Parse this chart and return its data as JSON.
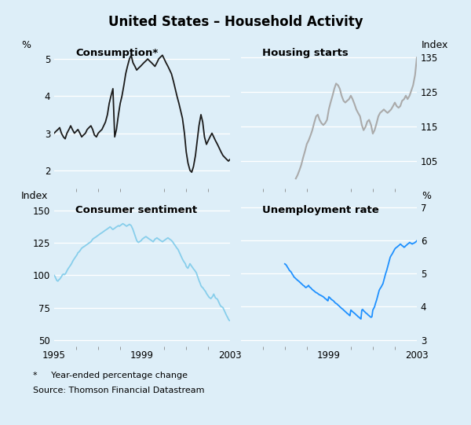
{
  "title": "United States – Household Activity",
  "bg_color": "#ddeef8",
  "footnote": "*     Year-ended percentage change",
  "source": "Source: Thomson Financial Datastream",
  "panel_titles": [
    "Consumption*",
    "Housing starts",
    "Consumer sentiment",
    "Unemployment rate"
  ],
  "left_labels_top": "%",
  "right_labels_top": "Index",
  "left_labels_bot": "Index",
  "right_labels_bot": "%",
  "consumption": {
    "x": [
      1995.0,
      1995.08,
      1995.17,
      1995.25,
      1995.33,
      1995.42,
      1995.5,
      1995.58,
      1995.67,
      1995.75,
      1995.83,
      1995.92,
      1996.0,
      1996.08,
      1996.17,
      1996.25,
      1996.33,
      1996.42,
      1996.5,
      1996.58,
      1996.67,
      1996.75,
      1996.83,
      1996.92,
      1997.0,
      1997.08,
      1997.17,
      1997.25,
      1997.33,
      1997.42,
      1997.5,
      1997.58,
      1997.67,
      1997.75,
      1997.83,
      1997.92,
      1998.0,
      1998.08,
      1998.17,
      1998.25,
      1998.33,
      1998.42,
      1998.5,
      1998.58,
      1998.67,
      1998.75,
      1998.83,
      1998.92,
      1999.0,
      1999.08,
      1999.17,
      1999.25,
      1999.33,
      1999.42,
      1999.5,
      1999.58,
      1999.67,
      1999.75,
      1999.83,
      1999.92,
      2000.0,
      2000.08,
      2000.17,
      2000.25,
      2000.33,
      2000.42,
      2000.5,
      2000.58,
      2000.67,
      2000.75,
      2000.83,
      2000.92,
      2001.0,
      2001.08,
      2001.17,
      2001.25,
      2001.33,
      2001.42,
      2001.5,
      2001.58,
      2001.67,
      2001.75,
      2001.83,
      2001.92,
      2002.0,
      2002.08,
      2002.17,
      2002.25,
      2002.33,
      2002.42,
      2002.5,
      2002.58,
      2002.67,
      2002.75,
      2002.83,
      2002.92,
      2003.0
    ],
    "y": [
      3.0,
      3.05,
      3.1,
      3.15,
      3.0,
      2.9,
      2.85,
      3.0,
      3.1,
      3.2,
      3.1,
      3.0,
      3.05,
      3.1,
      3.0,
      2.9,
      2.95,
      3.0,
      3.1,
      3.15,
      3.2,
      3.1,
      2.95,
      2.9,
      3.0,
      3.05,
      3.1,
      3.2,
      3.3,
      3.5,
      3.8,
      4.0,
      4.2,
      2.9,
      3.1,
      3.5,
      3.8,
      4.0,
      4.3,
      4.6,
      4.8,
      5.0,
      5.1,
      4.9,
      4.8,
      4.7,
      4.75,
      4.8,
      4.85,
      4.9,
      4.95,
      5.0,
      4.95,
      4.9,
      4.85,
      4.8,
      4.9,
      5.0,
      5.05,
      5.1,
      5.0,
      4.9,
      4.8,
      4.7,
      4.6,
      4.4,
      4.2,
      4.0,
      3.8,
      3.6,
      3.4,
      3.0,
      2.5,
      2.2,
      2.0,
      1.95,
      2.1,
      2.4,
      2.8,
      3.2,
      3.5,
      3.3,
      2.9,
      2.7,
      2.8,
      2.9,
      3.0,
      2.9,
      2.8,
      2.7,
      2.6,
      2.5,
      2.4,
      2.35,
      2.3,
      2.25,
      2.3
    ],
    "color": "#1a1a1a",
    "ylim": [
      1.5,
      5.5
    ],
    "yticks": [
      2,
      3,
      4,
      5
    ]
  },
  "housing": {
    "x": [
      1997.5,
      1997.58,
      1997.67,
      1997.75,
      1997.83,
      1997.92,
      1998.0,
      1998.08,
      1998.17,
      1998.25,
      1998.33,
      1998.42,
      1998.5,
      1998.58,
      1998.67,
      1998.75,
      1998.83,
      1998.92,
      1999.0,
      1999.08,
      1999.17,
      1999.25,
      1999.33,
      1999.42,
      1999.5,
      1999.58,
      1999.67,
      1999.75,
      1999.83,
      1999.92,
      2000.0,
      2000.08,
      2000.17,
      2000.25,
      2000.33,
      2000.42,
      2000.5,
      2000.58,
      2000.67,
      2000.75,
      2000.83,
      2000.92,
      2001.0,
      2001.08,
      2001.17,
      2001.25,
      2001.33,
      2001.42,
      2001.5,
      2001.58,
      2001.67,
      2001.75,
      2001.83,
      2001.92,
      2002.0,
      2002.08,
      2002.17,
      2002.25,
      2002.33,
      2002.42,
      2002.5,
      2002.58,
      2002.67,
      2002.75,
      2002.83,
      2002.92,
      2003.0
    ],
    "y": [
      100.0,
      101.0,
      102.5,
      104.0,
      106.0,
      108.0,
      110.0,
      111.0,
      112.5,
      114.0,
      116.0,
      118.0,
      118.5,
      117.0,
      116.0,
      115.5,
      116.0,
      117.0,
      120.0,
      122.0,
      124.0,
      126.0,
      127.5,
      127.0,
      126.0,
      124.0,
      122.5,
      122.0,
      122.5,
      123.0,
      124.0,
      123.0,
      121.5,
      120.0,
      119.0,
      118.0,
      115.5,
      114.0,
      115.0,
      116.5,
      117.0,
      115.5,
      113.0,
      114.0,
      116.0,
      118.0,
      119.0,
      119.5,
      120.0,
      119.5,
      119.0,
      119.5,
      120.0,
      121.0,
      122.0,
      121.0,
      120.5,
      121.0,
      122.5,
      123.0,
      124.0,
      123.0,
      124.0,
      125.5,
      127.0,
      130.0,
      135.0
    ],
    "color": "#aaaaaa",
    "ylim": [
      97,
      140
    ],
    "yticks": [
      105,
      115,
      125,
      135
    ]
  },
  "sentiment": {
    "x": [
      1995.0,
      1995.04,
      1995.08,
      1995.12,
      1995.17,
      1995.21,
      1995.25,
      1995.29,
      1995.33,
      1995.38,
      1995.42,
      1995.46,
      1995.5,
      1995.54,
      1995.58,
      1995.63,
      1995.67,
      1995.71,
      1995.75,
      1995.79,
      1995.83,
      1995.88,
      1995.92,
      1995.96,
      1996.0,
      1996.04,
      1996.08,
      1996.12,
      1996.17,
      1996.21,
      1996.25,
      1996.29,
      1996.33,
      1996.38,
      1996.42,
      1996.46,
      1996.5,
      1996.54,
      1996.58,
      1996.63,
      1996.67,
      1996.71,
      1996.75,
      1996.79,
      1996.83,
      1996.88,
      1996.92,
      1996.96,
      1997.0,
      1997.04,
      1997.08,
      1997.12,
      1997.17,
      1997.21,
      1997.25,
      1997.29,
      1997.33,
      1997.38,
      1997.42,
      1997.46,
      1997.5,
      1997.54,
      1997.58,
      1997.63,
      1997.67,
      1997.71,
      1997.75,
      1997.79,
      1997.83,
      1997.88,
      1997.92,
      1997.96,
      1998.0,
      1998.04,
      1998.08,
      1998.12,
      1998.17,
      1998.21,
      1998.25,
      1998.29,
      1998.33,
      1998.38,
      1998.42,
      1998.46,
      1998.5,
      1998.54,
      1998.58,
      1998.63,
      1998.67,
      1998.71,
      1998.75,
      1998.79,
      1998.83,
      1998.88,
      1998.92,
      1998.96,
      1999.0,
      1999.04,
      1999.08,
      1999.12,
      1999.17,
      1999.21,
      1999.25,
      1999.29,
      1999.33,
      1999.38,
      1999.42,
      1999.46,
      1999.5,
      1999.54,
      1999.58,
      1999.63,
      1999.67,
      1999.71,
      1999.75,
      1999.79,
      1999.83,
      1999.88,
      1999.92,
      1999.96,
      2000.0,
      2000.04,
      2000.08,
      2000.12,
      2000.17,
      2000.21,
      2000.25,
      2000.29,
      2000.33,
      2000.38,
      2000.42,
      2000.46,
      2000.5,
      2000.54,
      2000.58,
      2000.63,
      2000.67,
      2000.71,
      2000.75,
      2000.79,
      2000.83,
      2000.88,
      2000.92,
      2000.96,
      2001.0,
      2001.04,
      2001.08,
      2001.12,
      2001.17,
      2001.21,
      2001.25,
      2001.29,
      2001.33,
      2001.38,
      2001.42,
      2001.46,
      2001.5,
      2001.54,
      2001.58,
      2001.63,
      2001.67,
      2001.71,
      2001.75,
      2001.79,
      2001.83,
      2001.88,
      2001.92,
      2001.96,
      2002.0,
      2002.04,
      2002.08,
      2002.12,
      2002.17,
      2002.21,
      2002.25,
      2002.29,
      2002.33,
      2002.38,
      2002.42,
      2002.46,
      2002.5,
      2002.54,
      2002.58,
      2002.63,
      2002.67,
      2002.71,
      2002.75,
      2002.79,
      2002.83,
      2002.88,
      2002.92,
      2002.96,
      2003.0
    ],
    "y": [
      100.0,
      99.0,
      97.5,
      96.0,
      95.5,
      96.5,
      97.0,
      98.0,
      99.0,
      100.5,
      101.0,
      100.5,
      101.0,
      102.0,
      103.5,
      105.0,
      106.0,
      107.0,
      108.0,
      109.0,
      110.5,
      112.0,
      113.0,
      114.0,
      115.0,
      116.0,
      117.5,
      118.0,
      119.0,
      120.0,
      121.0,
      121.5,
      122.0,
      122.5,
      123.0,
      123.5,
      124.0,
      124.5,
      125.0,
      125.5,
      126.0,
      127.0,
      128.0,
      128.5,
      129.0,
      129.5,
      130.0,
      130.5,
      131.0,
      131.5,
      132.0,
      132.5,
      133.0,
      133.5,
      134.0,
      134.5,
      135.0,
      135.5,
      136.0,
      136.5,
      137.0,
      137.5,
      137.0,
      136.0,
      135.5,
      136.0,
      136.5,
      137.0,
      137.5,
      138.0,
      138.5,
      138.0,
      138.5,
      139.0,
      139.5,
      140.0,
      139.5,
      139.0,
      138.5,
      138.0,
      138.5,
      139.0,
      139.5,
      139.0,
      138.5,
      137.0,
      135.5,
      133.0,
      131.0,
      129.0,
      127.0,
      126.0,
      125.5,
      126.0,
      126.5,
      127.0,
      128.0,
      128.5,
      129.0,
      129.5,
      130.0,
      129.5,
      129.0,
      128.5,
      128.0,
      127.5,
      127.0,
      126.5,
      126.0,
      127.0,
      128.0,
      128.5,
      129.0,
      128.5,
      128.0,
      127.5,
      127.0,
      126.5,
      126.0,
      126.5,
      127.0,
      127.5,
      128.0,
      128.5,
      129.0,
      128.5,
      128.0,
      127.5,
      127.0,
      126.0,
      125.0,
      124.0,
      123.0,
      122.0,
      121.0,
      120.0,
      118.5,
      117.0,
      115.5,
      114.0,
      112.5,
      111.0,
      110.0,
      109.0,
      107.0,
      106.0,
      105.5,
      107.0,
      109.0,
      108.0,
      107.0,
      106.0,
      105.0,
      104.0,
      103.0,
      102.0,
      100.0,
      98.0,
      96.0,
      94.0,
      92.0,
      91.0,
      90.5,
      89.5,
      88.5,
      87.5,
      86.0,
      85.0,
      84.0,
      83.0,
      82.5,
      82.0,
      83.0,
      84.0,
      85.5,
      84.0,
      82.5,
      82.0,
      81.5,
      80.0,
      78.5,
      77.0,
      76.0,
      75.5,
      75.0,
      73.5,
      72.0,
      70.5,
      69.0,
      67.5,
      66.0,
      65.0,
      65.0
    ],
    "color": "#87ceeb",
    "ylim": [
      45,
      160
    ],
    "yticks": [
      50,
      75,
      100,
      125,
      150
    ]
  },
  "unemployment": {
    "x": [
      1997.0,
      1997.04,
      1997.08,
      1997.12,
      1997.17,
      1997.21,
      1997.25,
      1997.29,
      1997.33,
      1997.38,
      1997.42,
      1997.46,
      1997.5,
      1997.54,
      1997.58,
      1997.63,
      1997.67,
      1997.71,
      1997.75,
      1997.79,
      1997.83,
      1997.88,
      1997.92,
      1997.96,
      1998.0,
      1998.04,
      1998.08,
      1998.12,
      1998.17,
      1998.21,
      1998.25,
      1998.29,
      1998.33,
      1998.38,
      1998.42,
      1998.46,
      1998.5,
      1998.54,
      1998.58,
      1998.63,
      1998.67,
      1998.71,
      1998.75,
      1998.79,
      1998.83,
      1998.88,
      1998.92,
      1998.96,
      1999.0,
      1999.04,
      1999.08,
      1999.12,
      1999.17,
      1999.21,
      1999.25,
      1999.29,
      1999.33,
      1999.38,
      1999.42,
      1999.46,
      1999.5,
      1999.54,
      1999.58,
      1999.63,
      1999.67,
      1999.71,
      1999.75,
      1999.79,
      1999.83,
      1999.88,
      1999.92,
      1999.96,
      2000.0,
      2000.04,
      2000.08,
      2000.12,
      2000.17,
      2000.21,
      2000.25,
      2000.29,
      2000.33,
      2000.38,
      2000.42,
      2000.46,
      2000.5,
      2000.54,
      2000.58,
      2000.63,
      2000.67,
      2000.71,
      2000.75,
      2000.79,
      2000.83,
      2000.88,
      2000.92,
      2000.96,
      2001.0,
      2001.04,
      2001.08,
      2001.12,
      2001.17,
      2001.21,
      2001.25,
      2001.29,
      2001.33,
      2001.38,
      2001.42,
      2001.46,
      2001.5,
      2001.54,
      2001.58,
      2001.63,
      2001.67,
      2001.71,
      2001.75,
      2001.79,
      2001.83,
      2001.88,
      2001.92,
      2001.96,
      2002.0,
      2002.04,
      2002.08,
      2002.12,
      2002.17,
      2002.21,
      2002.25,
      2002.29,
      2002.33,
      2002.38,
      2002.42,
      2002.46,
      2002.5,
      2002.54,
      2002.58,
      2002.63,
      2002.67,
      2002.71,
      2002.75,
      2002.79,
      2002.83,
      2002.88,
      2002.92,
      2002.96,
      2003.0
    ],
    "y": [
      5.3,
      5.28,
      5.25,
      5.2,
      5.15,
      5.1,
      5.08,
      5.05,
      5.0,
      4.95,
      4.9,
      4.88,
      4.85,
      4.83,
      4.8,
      4.78,
      4.75,
      4.73,
      4.7,
      4.68,
      4.65,
      4.63,
      4.6,
      4.58,
      4.6,
      4.62,
      4.65,
      4.6,
      4.58,
      4.55,
      4.52,
      4.5,
      4.48,
      4.45,
      4.43,
      4.42,
      4.4,
      4.38,
      4.36,
      4.35,
      4.33,
      4.32,
      4.3,
      4.28,
      4.25,
      4.23,
      4.2,
      4.18,
      4.3,
      4.28,
      4.25,
      4.22,
      4.2,
      4.18,
      4.15,
      4.12,
      4.1,
      4.08,
      4.05,
      4.03,
      4.0,
      3.98,
      3.95,
      3.93,
      3.9,
      3.88,
      3.85,
      3.83,
      3.8,
      3.78,
      3.75,
      3.73,
      3.9,
      3.88,
      3.85,
      3.83,
      3.8,
      3.78,
      3.75,
      3.73,
      3.7,
      3.68,
      3.65,
      3.63,
      3.9,
      3.92,
      3.88,
      3.85,
      3.82,
      3.8,
      3.78,
      3.75,
      3.73,
      3.7,
      3.68,
      3.7,
      3.9,
      3.95,
      4.0,
      4.1,
      4.2,
      4.3,
      4.4,
      4.5,
      4.55,
      4.6,
      4.65,
      4.7,
      4.8,
      4.9,
      5.0,
      5.1,
      5.2,
      5.3,
      5.4,
      5.5,
      5.55,
      5.6,
      5.65,
      5.7,
      5.75,
      5.78,
      5.8,
      5.82,
      5.85,
      5.87,
      5.9,
      5.88,
      5.85,
      5.83,
      5.8,
      5.82,
      5.85,
      5.87,
      5.9,
      5.92,
      5.95,
      5.93,
      5.92,
      5.9,
      5.92,
      5.93,
      5.95,
      5.97,
      6.0
    ],
    "color": "#1e90ff",
    "ylim": [
      2.8,
      7.3
    ],
    "yticks": [
      3,
      4,
      5,
      6,
      7
    ]
  }
}
